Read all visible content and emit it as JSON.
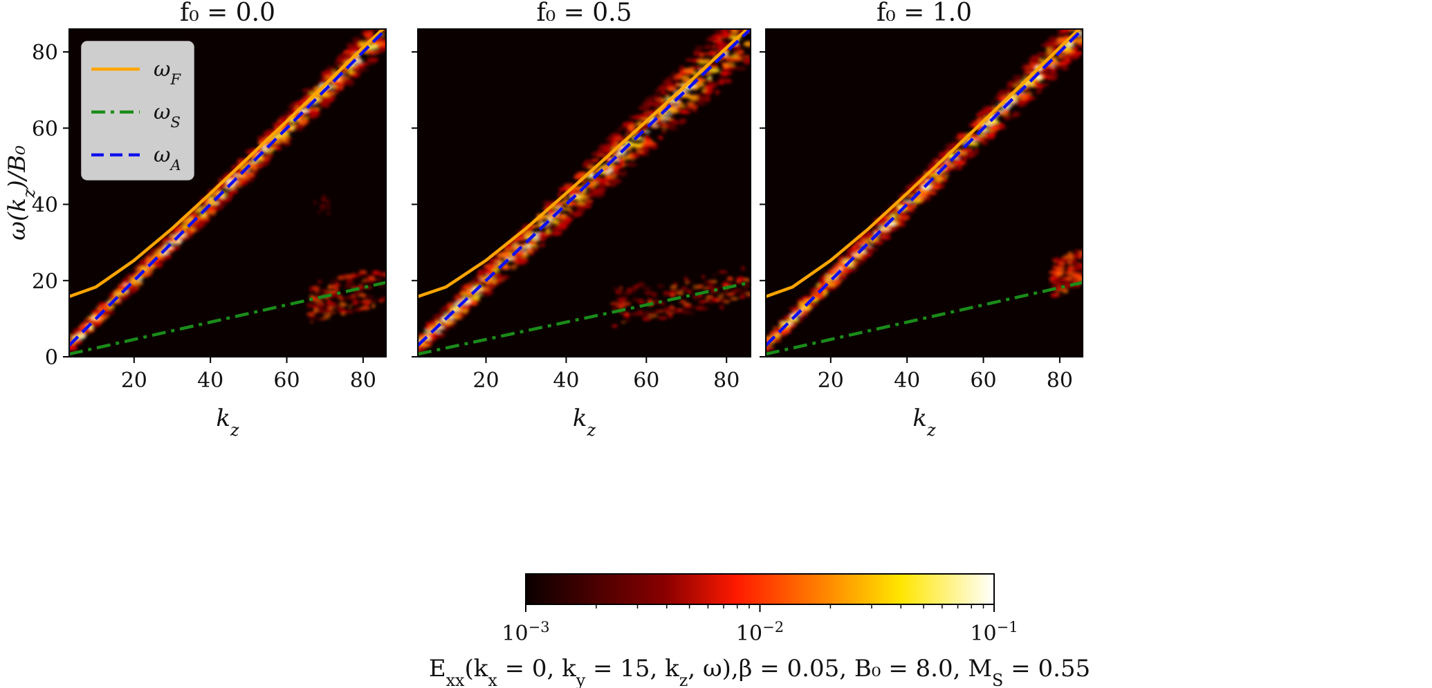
{
  "chart_data": [
    {
      "type": "heatmap",
      "title": "f₀ = 0.0",
      "xlabel": "k_z",
      "ylabel": "ω(k_z)/B₀",
      "xlim": [
        3,
        86
      ],
      "ylim": [
        0,
        86
      ],
      "xticks": [
        20,
        40,
        60,
        80
      ],
      "yticks": [
        0,
        20,
        40,
        60,
        80
      ],
      "xtick_labels": [
        "20",
        "40",
        "60",
        "80"
      ],
      "ytick_labels": [
        "0",
        "20",
        "40",
        "60",
        "80"
      ],
      "show_y_tick_labels": true,
      "grid": false,
      "legend": {
        "placement": "top-left",
        "entries": [
          {
            "name": "ω_F",
            "color": "#ffa500",
            "style": "solid"
          },
          {
            "name": "ω_S",
            "color": "#1a8c1a",
            "style": "dashdot"
          },
          {
            "name": "ω_A",
            "color": "#1010ee",
            "style": "dashed"
          }
        ]
      },
      "series": [
        {
          "name": "ω_F",
          "color": "#ffa500",
          "style": "solid",
          "x": [
            3,
            10,
            20,
            30,
            40,
            50,
            60,
            70,
            80,
            86
          ],
          "y": [
            15.8,
            18.3,
            25.3,
            33.7,
            42.9,
            52.3,
            61.8,
            71.4,
            81.1,
            86.8
          ]
        },
        {
          "name": "ω_S",
          "color": "#1a8c1a",
          "style": "dashdot",
          "x": [
            3,
            86
          ],
          "y": [
            0.7,
            19.5
          ]
        },
        {
          "name": "ω_A",
          "color": "#1010ee",
          "style": "dashed",
          "x": [
            3,
            86
          ],
          "y": [
            3.0,
            86.0
          ]
        }
      ],
      "emission": [
        {
          "branch": "main",
          "x_range": [
            3,
            86
          ],
          "spread": 3.5
        },
        {
          "branch": "faint",
          "x": 69,
          "y": 40
        },
        {
          "branch": "slow",
          "x_range": [
            66,
            86
          ],
          "y_center": [
            14,
            19
          ]
        }
      ]
    },
    {
      "type": "heatmap",
      "title": "f₀ = 0.5",
      "xlabel": "k_z",
      "ylabel": "",
      "xlim": [
        3,
        86
      ],
      "ylim": [
        0,
        86
      ],
      "xticks": [
        20,
        40,
        60,
        80
      ],
      "yticks": [
        0,
        20,
        40,
        60,
        80
      ],
      "xtick_labels": [
        "20",
        "40",
        "60",
        "80"
      ],
      "ytick_labels": [
        "0",
        "20",
        "40",
        "60",
        "80"
      ],
      "show_y_tick_labels": false,
      "grid": false,
      "series": [
        {
          "name": "ω_F",
          "color": "#ffa500",
          "style": "solid",
          "x": [
            3,
            10,
            20,
            30,
            40,
            50,
            60,
            70,
            80,
            86
          ],
          "y": [
            15.8,
            18.3,
            25.3,
            33.7,
            42.9,
            52.3,
            61.8,
            71.4,
            81.1,
            86.8
          ]
        },
        {
          "name": "ω_S",
          "color": "#1a8c1a",
          "style": "dashdot",
          "x": [
            3,
            86
          ],
          "y": [
            0.7,
            19.5
          ]
        },
        {
          "name": "ω_A",
          "color": "#1010ee",
          "style": "dashed",
          "x": [
            3,
            86
          ],
          "y": [
            3.0,
            86.0
          ]
        }
      ],
      "emission": [
        {
          "branch": "main",
          "x_range": [
            3,
            86
          ],
          "spread": 6
        },
        {
          "branch": "slow",
          "x_range": [
            52,
            86
          ],
          "y_center": [
            13,
            19
          ]
        }
      ]
    },
    {
      "type": "heatmap",
      "title": "f₀ = 1.0",
      "xlabel": "k_z",
      "ylabel": "",
      "xlim": [
        3,
        86
      ],
      "ylim": [
        0,
        86
      ],
      "xticks": [
        20,
        40,
        60,
        80
      ],
      "yticks": [
        0,
        20,
        40,
        60,
        80
      ],
      "xtick_labels": [
        "20",
        "40",
        "60",
        "80"
      ],
      "ytick_labels": [
        "0",
        "20",
        "40",
        "60",
        "80"
      ],
      "show_y_tick_labels": false,
      "grid": false,
      "series": [
        {
          "name": "ω_F",
          "color": "#ffa500",
          "style": "solid",
          "x": [
            3,
            10,
            20,
            30,
            40,
            50,
            60,
            70,
            80,
            86
          ],
          "y": [
            15.8,
            18.3,
            25.3,
            33.7,
            42.9,
            52.3,
            61.8,
            71.4,
            81.1,
            86.8
          ]
        },
        {
          "name": "ω_S",
          "color": "#1a8c1a",
          "style": "dashdot",
          "x": [
            3,
            86
          ],
          "y": [
            0.7,
            19.5
          ]
        },
        {
          "name": "ω_A",
          "color": "#1010ee",
          "style": "dashed",
          "x": [
            3,
            86
          ],
          "y": [
            3.0,
            86.0
          ]
        }
      ],
      "emission": [
        {
          "branch": "main",
          "x_range": [
            3,
            86
          ],
          "spread": 4
        },
        {
          "branch": "slow",
          "x_range": [
            78,
            86
          ],
          "y_center": [
            20,
            24
          ]
        }
      ]
    }
  ],
  "colorbar": {
    "scale": "log",
    "range": [
      0.001,
      0.1
    ],
    "colormap": "hot",
    "tick_labels": [
      {
        "base": "10",
        "exp": "−3"
      },
      {
        "base": "10",
        "exp": "−2"
      },
      {
        "base": "10",
        "exp": "−1"
      }
    ],
    "label": "E_xx(k_x = 0, k_y = 15, k_z, ω),β = 0.05, B₀ = 8.0, M_S = 0.55"
  }
}
